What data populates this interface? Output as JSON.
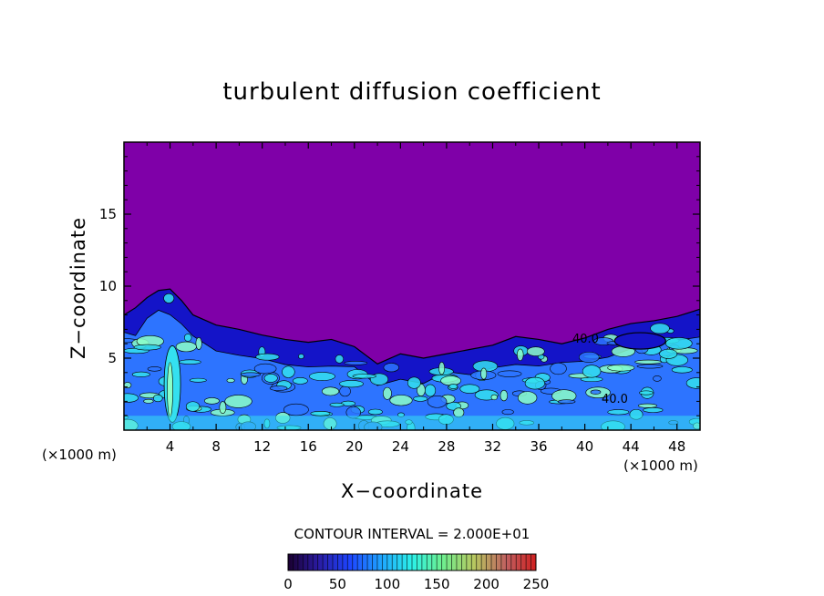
{
  "chart_data": {
    "type": "heatmap",
    "title": "turbulent diffusion coefficient",
    "xlabel": "X−coordinate",
    "ylabel": "Z−coordinate",
    "x_unit_left": "(×1000 m)",
    "x_unit_right": "(×1000 m)",
    "xlim": [
      0,
      50
    ],
    "ylim": [
      0,
      20
    ],
    "x_ticks": [
      4,
      8,
      12,
      16,
      20,
      24,
      28,
      32,
      36,
      40,
      44,
      48
    ],
    "y_ticks": [
      5,
      10,
      15
    ],
    "contour_interval_label": "CONTOUR INTERVAL = 2.000E+01",
    "contour_labels": [
      "40.0",
      "40.0"
    ],
    "colorbar": {
      "min": 0,
      "max": 250,
      "ticks": [
        0,
        50,
        100,
        150,
        200,
        250
      ]
    },
    "colors": {
      "background_field": "#7f00a8",
      "low": "#1414c8",
      "mid": "#2d74ff",
      "high": "#34e0f0",
      "peak": "#8cffc8"
    },
    "turbulent_layer_top": [
      [
        0,
        8.0
      ],
      [
        1,
        8.5
      ],
      [
        2,
        9.2
      ],
      [
        3,
        9.7
      ],
      [
        4,
        9.8
      ],
      [
        5,
        9.0
      ],
      [
        6,
        8.0
      ],
      [
        8,
        7.3
      ],
      [
        10,
        7.0
      ],
      [
        12,
        6.6
      ],
      [
        14,
        6.3
      ],
      [
        16,
        6.1
      ],
      [
        18,
        6.3
      ],
      [
        20,
        5.8
      ],
      [
        22,
        4.6
      ],
      [
        24,
        5.3
      ],
      [
        26,
        5.0
      ],
      [
        28,
        5.3
      ],
      [
        30,
        5.6
      ],
      [
        32,
        5.9
      ],
      [
        34,
        6.5
      ],
      [
        36,
        6.3
      ],
      [
        38,
        6.0
      ],
      [
        40,
        6.4
      ],
      [
        42,
        7.0
      ],
      [
        44,
        7.4
      ],
      [
        46,
        7.6
      ],
      [
        48,
        7.9
      ],
      [
        50,
        8.4
      ]
    ]
  }
}
